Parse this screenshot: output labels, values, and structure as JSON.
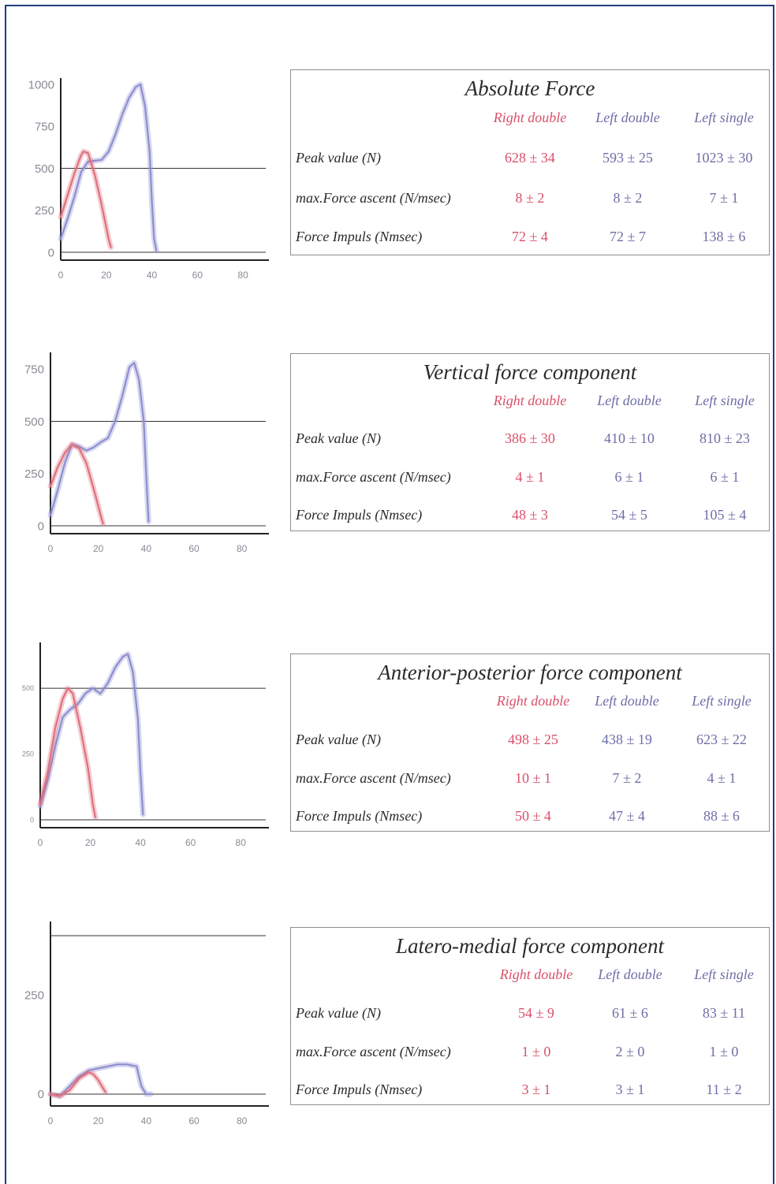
{
  "colors": {
    "right_double": "#e0707e",
    "left_double": "#8e8ed0",
    "left_single": "#6e6ea8",
    "row_text": "#2a2a2a"
  },
  "panels": [
    {
      "title": "Absolute Force",
      "columns": [
        "Right double",
        "Left double",
        "Left single"
      ],
      "rows": [
        {
          "label": "Peak value (N)",
          "values": [
            "628 ± 34",
            "593 ± 25",
            "1023 ± 30"
          ]
        },
        {
          "label": "max.Force ascent (N/msec)",
          "values": [
            "8 ± 2",
            "8 ± 2",
            "7 ± 1"
          ]
        },
        {
          "label": "Force Impuls (Nmsec)",
          "values": [
            "72 ± 4",
            "72 ± 7",
            "138 ± 6"
          ]
        }
      ]
    },
    {
      "title": "Vertical force component",
      "columns": [
        "Right double",
        "Left double",
        "Left single"
      ],
      "rows": [
        {
          "label": "Peak value (N)",
          "values": [
            "386 ± 30",
            "410 ± 10",
            "810 ± 23"
          ]
        },
        {
          "label": "max.Force ascent (N/msec)",
          "values": [
            "4 ± 1",
            "6 ± 1",
            "6 ± 1"
          ]
        },
        {
          "label": "Force Impuls (Nmsec)",
          "values": [
            "48 ± 3",
            "54 ± 5",
            "105 ± 4"
          ]
        }
      ]
    },
    {
      "title": "Anterior-posterior force component",
      "columns": [
        "Right double",
        "Left double",
        "Left single"
      ],
      "rows": [
        {
          "label": "Peak value (N)",
          "values": [
            "498 ± 25",
            "438 ± 19",
            "623 ± 22"
          ]
        },
        {
          "label": "max.Force ascent (N/msec)",
          "values": [
            "10 ± 1",
            "7 ± 2",
            "4 ± 1"
          ]
        },
        {
          "label": "Force Impuls (Nmsec)",
          "values": [
            "50 ± 4",
            "47 ± 4",
            "88 ± 6"
          ]
        }
      ]
    },
    {
      "title": "Latero-medial force component",
      "columns": [
        "Right double",
        "Left double",
        "Left single"
      ],
      "rows": [
        {
          "label": "Peak value (N)",
          "values": [
            "54 ± 9",
            "61 ± 6",
            "83 ± 11"
          ]
        },
        {
          "label": "max.Force ascent (N/msec)",
          "values": [
            "1 ± 0",
            "2 ± 0",
            "1 ± 0"
          ]
        },
        {
          "label": "Force Impuls (Nmsec)",
          "values": [
            "3 ± 1",
            "3 ± 1",
            "11 ± 2"
          ]
        }
      ]
    }
  ],
  "chart_data": [
    {
      "type": "line",
      "x_ticks": [
        "0",
        "20",
        "40",
        "60",
        "80"
      ],
      "y_ticks": [
        "1000",
        "750",
        "500",
        "250",
        "0"
      ],
      "xlim": [
        0,
        90
      ],
      "ylim": [
        0,
        1000
      ],
      "hline": 500,
      "series": [
        {
          "color": "#8e8ed0",
          "x": [
            0,
            3,
            6,
            9,
            12,
            15,
            18,
            21,
            24,
            27,
            30,
            33,
            35,
            37,
            39,
            40,
            41,
            42
          ],
          "y": [
            80,
            200,
            330,
            480,
            540,
            545,
            550,
            600,
            700,
            820,
            920,
            985,
            1000,
            870,
            600,
            300,
            80,
            10
          ]
        },
        {
          "color": "#e0707e",
          "x": [
            0,
            3,
            6,
            9,
            10,
            12,
            15,
            18,
            21,
            22
          ],
          "y": [
            210,
            340,
            470,
            580,
            600,
            590,
            460,
            280,
            80,
            30
          ]
        }
      ]
    },
    {
      "type": "line",
      "x_ticks": [
        "0",
        "20",
        "40",
        "60",
        "80"
      ],
      "y_ticks": [
        "750",
        "500",
        "250",
        "0"
      ],
      "xlim": [
        0,
        90
      ],
      "ylim": [
        0,
        800
      ],
      "hline": 500,
      "series": [
        {
          "color": "#8e8ed0",
          "x": [
            0,
            3,
            6,
            9,
            12,
            15,
            18,
            21,
            24,
            27,
            30,
            33,
            35,
            37,
            39,
            40,
            41
          ],
          "y": [
            50,
            170,
            300,
            390,
            380,
            360,
            375,
            400,
            420,
            500,
            620,
            760,
            780,
            700,
            500,
            250,
            20
          ]
        },
        {
          "color": "#e0707e",
          "x": [
            0,
            3,
            6,
            9,
            12,
            15,
            18,
            21,
            22
          ],
          "y": [
            190,
            280,
            350,
            390,
            370,
            300,
            180,
            50,
            10
          ]
        }
      ]
    },
    {
      "type": "line",
      "x_ticks": [
        "0",
        "20",
        "40",
        "60",
        "80"
      ],
      "y_ticks": [
        "500",
        "250",
        "0"
      ],
      "xlim": [
        0,
        90
      ],
      "ylim": [
        0,
        650
      ],
      "hline": 500,
      "series": [
        {
          "color": "#8e8ed0",
          "x": [
            0,
            3,
            6,
            9,
            12,
            15,
            18,
            21,
            24,
            27,
            30,
            33,
            35,
            37,
            39,
            40,
            41
          ],
          "y": [
            50,
            150,
            280,
            390,
            420,
            440,
            480,
            500,
            480,
            520,
            580,
            620,
            630,
            560,
            380,
            180,
            20
          ]
        },
        {
          "color": "#e0707e",
          "x": [
            0,
            3,
            6,
            9,
            11,
            13,
            16,
            19,
            21,
            22
          ],
          "y": [
            60,
            180,
            350,
            460,
            500,
            480,
            350,
            200,
            60,
            10
          ]
        }
      ]
    },
    {
      "type": "line",
      "x_ticks": [
        "0",
        "20",
        "40",
        "60",
        "80"
      ],
      "y_ticks": [
        "250",
        "0"
      ],
      "xlim": [
        0,
        90
      ],
      "ylim": [
        -10,
        420
      ],
      "hline": 400,
      "series": [
        {
          "color": "#8e8ed0",
          "x": [
            0,
            4,
            8,
            12,
            16,
            20,
            24,
            28,
            32,
            36,
            38,
            40,
            42
          ],
          "y": [
            0,
            -5,
            20,
            45,
            60,
            65,
            70,
            75,
            75,
            70,
            20,
            0,
            0
          ]
        },
        {
          "color": "#e0707e",
          "x": [
            0,
            4,
            8,
            12,
            16,
            18,
            20,
            22,
            23
          ],
          "y": [
            0,
            -5,
            10,
            40,
            55,
            50,
            35,
            15,
            5
          ]
        }
      ]
    }
  ]
}
